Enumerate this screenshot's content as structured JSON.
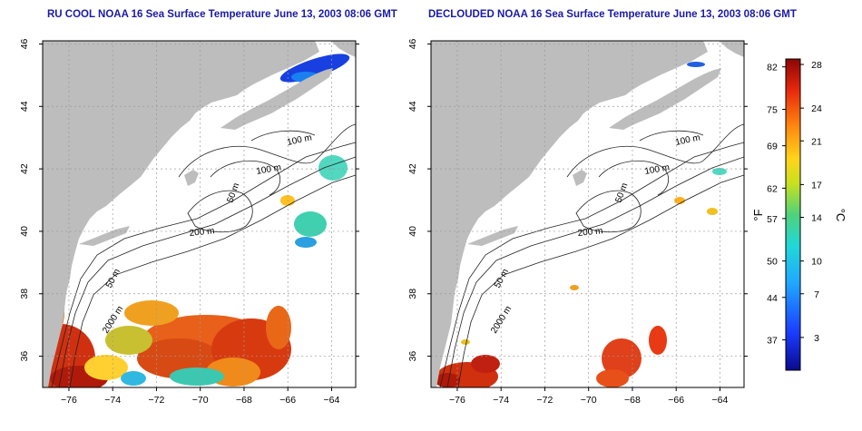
{
  "titles": {
    "left": "RU COOL NOAA 16 Sea Surface Temperature June 13, 2003 08:06 GMT",
    "right": "DECLOUDED NOAA 16 Sea Surface Temperature June 13, 2003 08:06 GMT"
  },
  "axes": {
    "lon_ticks": [
      -76,
      -74,
      -72,
      -70,
      -68,
      -66,
      -64
    ],
    "lat_ticks": [
      36,
      38,
      40,
      42,
      44,
      46
    ],
    "lon_range": [
      -77.2,
      -62.9
    ],
    "lat_range": [
      35.0,
      46.1
    ]
  },
  "contours": {
    "labels": [
      "100 m",
      "100 m",
      "50 m",
      "200 m",
      "50 m",
      "2000 m"
    ]
  },
  "colorbar": {
    "f_ticks": [
      "82",
      "75",
      "69",
      "62",
      "57",
      "50",
      "44",
      "37"
    ],
    "c_ticks": [
      "28",
      "24",
      "21",
      "17",
      "14",
      "10",
      "7",
      "3"
    ],
    "f_label": "°F",
    "c_label": "°C",
    "range_c": [
      0,
      28.5
    ]
  },
  "colors": {
    "land": "#bdbdbd",
    "title": "#1a1aa6",
    "grid": "#9a9a9a"
  }
}
